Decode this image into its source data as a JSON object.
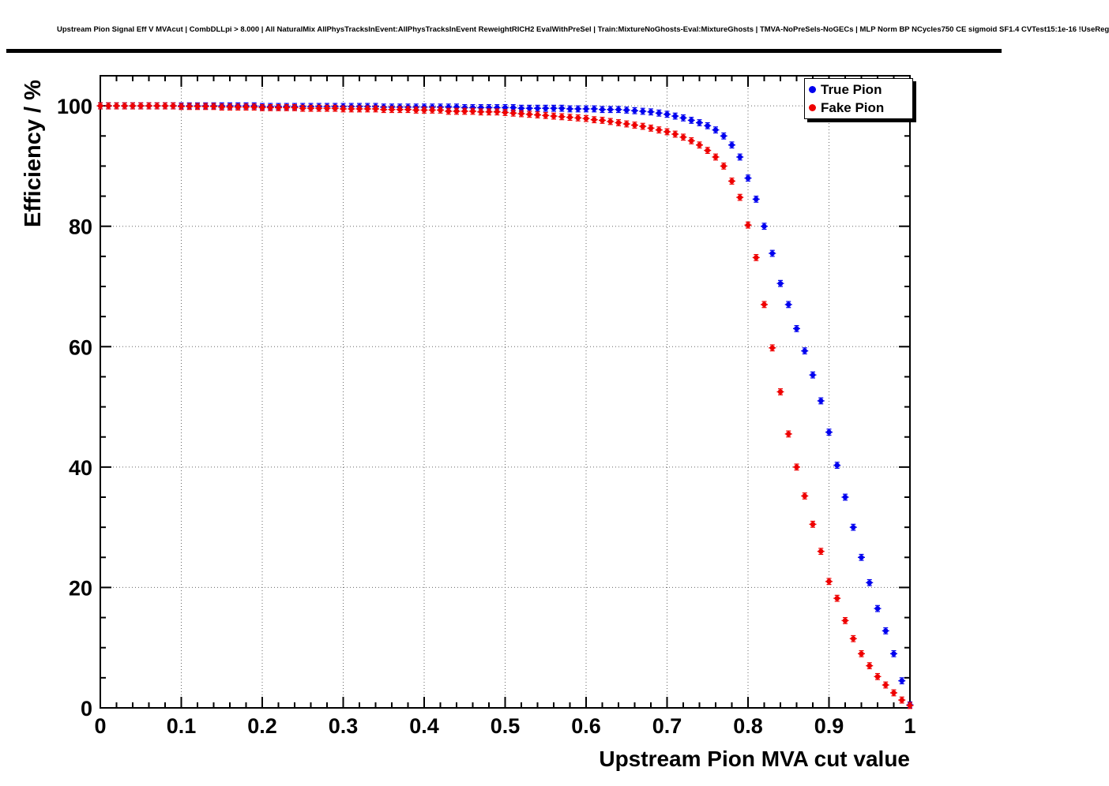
{
  "title": "Upstream Pion Signal Eff V MVAcut | CombDLLpi > 8.000 | All NaturalMix AllPhysTracksInEvent:AllPhysTracksInEvent ReweightRICH2 EvalWithPreSel | Train:MixtureNoGhosts-Eval:MixtureGhosts | TMVA-NoPreSels-NoGECs | MLP Norm BP NCycles750 CE sigmoid SF1.4 CVTest15:1e-16 !UseReg",
  "chart_data": {
    "type": "scatter",
    "title": "Upstream Pion Signal Eff V MVAcut",
    "xlabel": "Upstream Pion MVA cut value",
    "ylabel": "Efficiency / %",
    "xlim": [
      0,
      1
    ],
    "ylim": [
      0,
      105
    ],
    "xticks": [
      0,
      0.1,
      0.2,
      0.3,
      0.4,
      0.5,
      0.6,
      0.7,
      0.8,
      0.9,
      1
    ],
    "yticks": [
      0,
      20,
      40,
      60,
      80,
      100
    ],
    "grid": true,
    "legend_position": "top-right",
    "point_error": 0.5,
    "x": [
      0,
      0.01,
      0.02,
      0.03,
      0.04,
      0.05,
      0.06,
      0.07,
      0.08,
      0.09,
      0.1,
      0.11,
      0.12,
      0.13,
      0.14,
      0.15,
      0.16,
      0.17,
      0.18,
      0.19,
      0.2,
      0.21,
      0.22,
      0.23,
      0.24,
      0.25,
      0.26,
      0.27,
      0.28,
      0.29,
      0.3,
      0.31,
      0.32,
      0.33,
      0.34,
      0.35,
      0.36,
      0.37,
      0.38,
      0.39,
      0.4,
      0.41,
      0.42,
      0.43,
      0.44,
      0.45,
      0.46,
      0.47,
      0.48,
      0.49,
      0.5,
      0.51,
      0.52,
      0.53,
      0.54,
      0.55,
      0.56,
      0.57,
      0.58,
      0.59,
      0.6,
      0.61,
      0.62,
      0.63,
      0.64,
      0.65,
      0.66,
      0.67,
      0.68,
      0.69,
      0.7,
      0.71,
      0.72,
      0.73,
      0.74,
      0.75,
      0.76,
      0.77,
      0.78,
      0.79,
      0.8,
      0.81,
      0.82,
      0.83,
      0.84,
      0.85,
      0.86,
      0.87,
      0.88,
      0.89,
      0.9,
      0.91,
      0.92,
      0.93,
      0.94,
      0.95,
      0.96,
      0.97,
      0.98,
      0.99,
      1
    ],
    "series": [
      {
        "name": "True Pion",
        "color": "#0000ee",
        "values": [
          100,
          100,
          100,
          100,
          100,
          100,
          100,
          100,
          100,
          100,
          100,
          100,
          100,
          100,
          100,
          100,
          100,
          100,
          100,
          100,
          99.9,
          99.9,
          99.9,
          99.9,
          99.9,
          99.9,
          99.9,
          99.9,
          99.9,
          99.9,
          99.9,
          99.9,
          99.9,
          99.9,
          99.9,
          99.8,
          99.8,
          99.8,
          99.8,
          99.8,
          99.8,
          99.8,
          99.8,
          99.8,
          99.8,
          99.7,
          99.7,
          99.7,
          99.7,
          99.7,
          99.7,
          99.7,
          99.6,
          99.6,
          99.6,
          99.6,
          99.6,
          99.6,
          99.5,
          99.5,
          99.5,
          99.5,
          99.4,
          99.4,
          99.4,
          99.3,
          99.2,
          99.1,
          99.0,
          98.8,
          98.6,
          98.3,
          98.0,
          97.6,
          97.2,
          96.7,
          96.0,
          95.0,
          93.5,
          91.5,
          88.0,
          84.5,
          80.0,
          75.5,
          70.5,
          67.0,
          63.0,
          59.3,
          55.3,
          51.0,
          45.8,
          40.3,
          35.0,
          30.0,
          25.0,
          20.8,
          16.5,
          12.8,
          9.0,
          4.5,
          0.5
        ]
      },
      {
        "name": "Fake Pion",
        "color": "#ee0000",
        "values": [
          100,
          100,
          100,
          100,
          100,
          100,
          100,
          100,
          100,
          100,
          99.9,
          99.9,
          99.9,
          99.9,
          99.9,
          99.8,
          99.8,
          99.8,
          99.8,
          99.8,
          99.7,
          99.7,
          99.7,
          99.7,
          99.7,
          99.6,
          99.6,
          99.6,
          99.6,
          99.6,
          99.5,
          99.5,
          99.5,
          99.5,
          99.5,
          99.4,
          99.4,
          99.4,
          99.4,
          99.3,
          99.3,
          99.3,
          99.3,
          99.1,
          99.1,
          99.1,
          99.1,
          99.0,
          99.0,
          99.0,
          98.9,
          98.8,
          98.7,
          98.6,
          98.5,
          98.4,
          98.3,
          98.2,
          98.1,
          98.0,
          97.9,
          97.7,
          97.6,
          97.4,
          97.2,
          97.0,
          96.8,
          96.6,
          96.3,
          96.0,
          95.7,
          95.3,
          94.8,
          94.2,
          93.5,
          92.6,
          91.5,
          90.0,
          87.5,
          84.8,
          80.2,
          74.8,
          67.0,
          59.8,
          52.5,
          45.5,
          40.0,
          35.2,
          30.5,
          26.0,
          21.0,
          18.2,
          14.5,
          11.5,
          9.0,
          7.0,
          5.2,
          3.8,
          2.5,
          1.3,
          0.4
        ]
      }
    ]
  }
}
